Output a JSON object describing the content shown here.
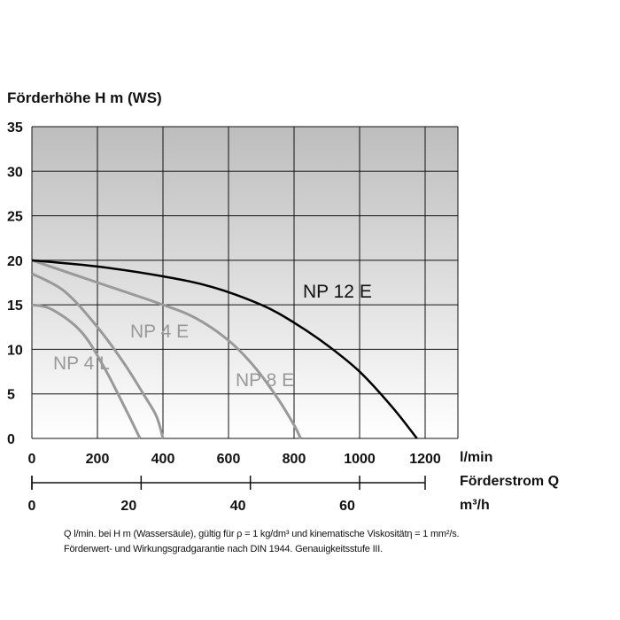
{
  "chart_data": {
    "type": "line",
    "ylabel": "Förderhöhe H m (WS)",
    "xlabel_primary": "Förderstrom Q",
    "x_unit_primary": "l/min",
    "x_unit_secondary": "m³/h",
    "ylim": [
      0,
      35
    ],
    "y_ticks": [
      0,
      5,
      10,
      15,
      20,
      25,
      30,
      35
    ],
    "xlim": [
      0,
      1200
    ],
    "x_ticks": [
      0,
      200,
      400,
      600,
      800,
      1000,
      1200
    ],
    "x_ticks_secondary": [
      0,
      20,
      40,
      60
    ],
    "grid": true,
    "series": [
      {
        "name": "NP 12 E",
        "color": "#000000",
        "x": [
          0,
          200,
          400,
          550,
          700,
          800,
          900,
          1000,
          1100,
          1175
        ],
        "y": [
          20,
          19.3,
          18.2,
          17.0,
          15.0,
          13.0,
          10.5,
          7.5,
          3.5,
          0
        ]
      },
      {
        "name": "NP 8 E",
        "color": "#999999",
        "x": [
          0,
          200,
          400,
          500,
          600,
          680,
          750,
          800,
          820
        ],
        "y": [
          20,
          17.5,
          15.0,
          13.5,
          11.0,
          8.0,
          4.5,
          1.5,
          0
        ]
      },
      {
        "name": "NP 4 E",
        "color": "#999999",
        "x": [
          0,
          100,
          200,
          280,
          340,
          380,
          400
        ],
        "y": [
          18.5,
          16.5,
          12.5,
          8.5,
          5.0,
          2.5,
          0
        ]
      },
      {
        "name": "NP 4 L",
        "color": "#999999",
        "x": [
          0,
          60,
          150,
          220,
          290,
          330
        ],
        "y": [
          15,
          14.5,
          12.0,
          8.0,
          3.0,
          0
        ]
      }
    ],
    "series_labels": [
      "NP 12 E",
      "NP 8 E",
      "NP 4 E",
      "NP 4 L"
    ]
  },
  "notes": [
    "Q l/min. bei H m (Wassersäule), gültig für ρ = 1 kg/dm³ und kinematische Viskositätη = 1 mm²/s.",
    "Förderwert- und Wirkungsgradgarantie nach DIN 1944. Genauigkeitsstufe III."
  ]
}
